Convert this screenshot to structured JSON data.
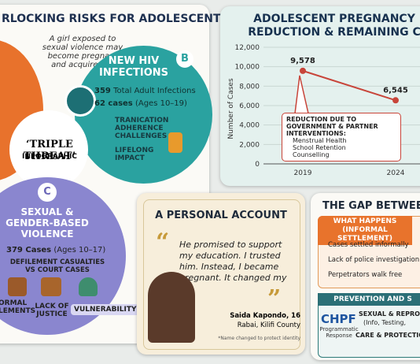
{
  "risks_panel": {
    "title": "RLOCKING RISKS FOR ADOLESCENT GIRLS",
    "intro": "A girl exposed to sexual violence may become pregnant and acquire HIV",
    "center": {
      "title": "‘TRIPLE THREAT’",
      "subtitle": "INFOGRAPHIC"
    },
    "hiv": {
      "badge": "B",
      "title": "NEW HIV INFECTIONS",
      "stats": [
        {
          "number": "359",
          "text": "Total Adult Infections"
        },
        {
          "number": "62 cases",
          "text": "(Ages 10–19)"
        }
      ],
      "items": [
        "TRANICATION ADHERENCE CHALLENGES",
        "LIFELONG IMPACT"
      ]
    },
    "sgbv": {
      "badge": "C",
      "title": "SEXUAL & GENDER-BASED VIOLENCE",
      "stat": {
        "number": "379 Cases",
        "text": "(Ages 10–17)"
      },
      "subhead": "DEFILEMENT CASUALTIES VS COURT CASES",
      "items": [
        "ORMAL LEMENTS",
        "LACK OF JUSTICE",
        "VULNERABILITY"
      ]
    }
  },
  "chart_data": {
    "type": "line",
    "title": [
      "ADOLESCENT PREGNANCY",
      "REDUCTION & REMAINING C"
    ],
    "y_label": "Number of Cases",
    "categories": [
      "2019",
      "2024"
    ],
    "values": [
      9578,
      6545
    ],
    "value_labels": [
      "9,578",
      "6,545"
    ],
    "color": "#c8453a",
    "ylim": [
      0,
      12000
    ],
    "yticks": [
      0,
      {
        "value": 2000,
        "label": "2,000"
      },
      {
        "value": 4000,
        "label": "4,000"
      },
      {
        "value": 6000,
        "label": "6,000"
      },
      {
        "value": 8000,
        "label": "8,000"
      },
      {
        "value": 10000,
        "label": "10,000"
      },
      {
        "value": 12000,
        "label": "12,000"
      }
    ],
    "grid": true,
    "annotation": {
      "title": "REDUCTION DUE TO GOVERNMENT & PARTNER INTERVENTIONS:",
      "items": [
        "Menstrual Health",
        "School Retention",
        "Counselling"
      ]
    }
  },
  "account": {
    "title": "A PERSONAL ACCOUNT",
    "quote": "He promised to support my education. I trusted him. Instead, I became pregnant. It changed my life.",
    "name": "Saida Kapondo, 16",
    "place": "Rabai, Kilifi County",
    "note": "*Name changed to protect identity"
  },
  "gap": {
    "title": "THE GAP BETWEEN A",
    "what": {
      "title": "WHAT HAPPENS",
      "subtitle": "(INFORMAL SETTLEMENT)",
      "items": [
        "Cases settled informally",
        "Lack of police investigation",
        "Perpetrators walk free"
      ]
    },
    "prevention": {
      "title": "PREVENTION AND S",
      "logo": "CHPF",
      "logo_caption": "Programmatic Response",
      "lines": [
        "SEXUAL & REPRODUCT",
        "(Info, Testing,",
        "CARE & PROTECTION B"
      ]
    }
  }
}
